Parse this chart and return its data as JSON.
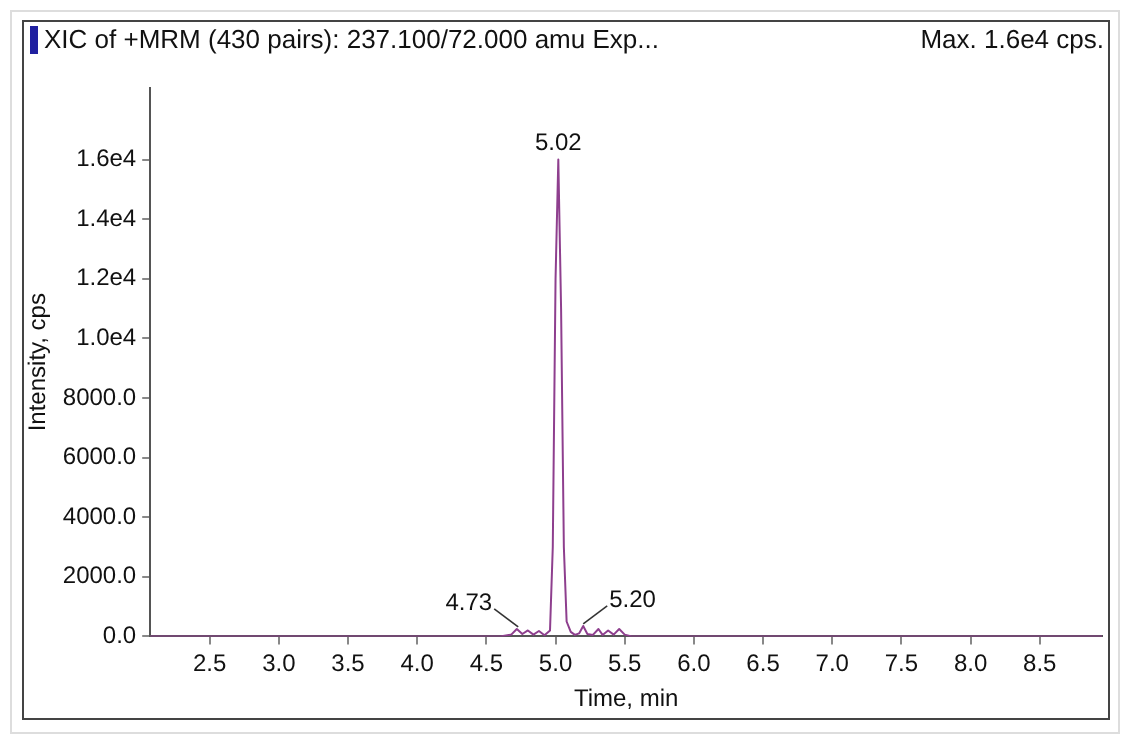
{
  "chart_data": {
    "type": "line",
    "title": "XIC of +MRM (430 pairs): 237.100/72.000 amu Exp...",
    "subtitle": "Max. 1.6e4 cps.",
    "xlabel": "Time, min",
    "ylabel": "Intensity, cps",
    "x": [
      2.07,
      4.6,
      4.68,
      4.72,
      4.76,
      4.8,
      4.84,
      4.88,
      4.92,
      4.96,
      4.98,
      5.0,
      5.02,
      5.04,
      5.06,
      5.08,
      5.11,
      5.14,
      5.17,
      5.2,
      5.23,
      5.27,
      5.31,
      5.34,
      5.38,
      5.42,
      5.46,
      5.5,
      5.55,
      8.95
    ],
    "series": [
      {
        "color": "#8e3f8e",
        "values": [
          0,
          0,
          60,
          250,
          80,
          200,
          60,
          180,
          40,
          200,
          3000,
          12000,
          16000,
          11000,
          3000,
          500,
          150,
          50,
          100,
          350,
          80,
          50,
          250,
          50,
          200,
          60,
          250,
          60,
          0,
          0
        ]
      }
    ],
    "xlim": [
      2.07,
      8.95
    ],
    "ylim": [
      0,
      18400
    ],
    "xticks": [
      {
        "value": 2.5,
        "label": "2.5"
      },
      {
        "value": 3,
        "label": "3.0"
      },
      {
        "value": 3.5,
        "label": "3.5"
      },
      {
        "value": 4,
        "label": "4.0"
      },
      {
        "value": 4.5,
        "label": "4.5"
      },
      {
        "value": 5,
        "label": "5.0"
      },
      {
        "value": 5.5,
        "label": "5.5"
      },
      {
        "value": 6,
        "label": "6.0"
      },
      {
        "value": 6.5,
        "label": "6.5"
      },
      {
        "value": 7,
        "label": "7.0"
      },
      {
        "value": 7.5,
        "label": "7.5"
      },
      {
        "value": 8,
        "label": "8.0"
      },
      {
        "value": 8.5,
        "label": "8.5"
      }
    ],
    "yticks": [
      {
        "value": 0,
        "label": "0.0"
      },
      {
        "value": 2000,
        "label": "2000.0"
      },
      {
        "value": 4000,
        "label": "4000.0"
      },
      {
        "value": 6000,
        "label": "6000.0"
      },
      {
        "value": 8000,
        "label": "8000.0"
      },
      {
        "value": 10000,
        "label": "1.0e4"
      },
      {
        "value": 12000,
        "label": "1.2e4"
      },
      {
        "value": 14000,
        "label": "1.4e4"
      },
      {
        "value": 16000,
        "label": "1.6e4"
      }
    ],
    "annotations": [
      {
        "text": "5.02",
        "x": 5.02,
        "y": 16000
      },
      {
        "text": "4.73",
        "x": 4.73,
        "y": 250
      },
      {
        "text": "5.20",
        "x": 5.2,
        "y": 350
      }
    ],
    "grid": false,
    "legend": false,
    "marker": "none",
    "line_style": "solid"
  }
}
